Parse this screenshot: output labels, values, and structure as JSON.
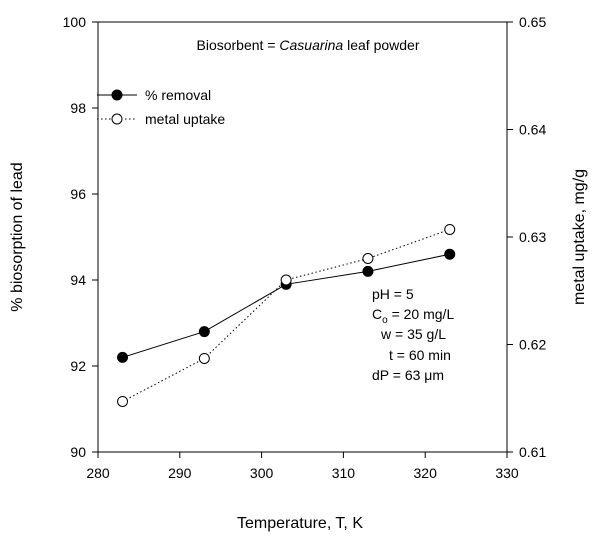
{
  "chart_data": {
    "type": "line",
    "title_prefix": "Biosorbent = ",
    "title_italic": "Casuarina",
    "title_suffix": " leaf powder",
    "xlabel": "Temperature, T, K",
    "ylabel_left": "% biosorption of lead",
    "ylabel_right": "metal uptake, mg/g",
    "xlim": [
      280,
      330
    ],
    "ylim_left": [
      90,
      100
    ],
    "ylim_right": [
      0.61,
      0.65
    ],
    "xticks": [
      "280",
      "290",
      "300",
      "310",
      "320",
      "330"
    ],
    "yticks_left": [
      "90",
      "92",
      "94",
      "96",
      "98",
      "100"
    ],
    "yticks_right": [
      "0.61",
      "0.62",
      "0.63",
      "0.64",
      "0.65"
    ],
    "series": [
      {
        "name": "% removal",
        "axis": "left",
        "marker": "filled-circle",
        "line": "solid",
        "x": [
          283,
          293,
          303,
          313,
          323
        ],
        "y": [
          92.2,
          92.8,
          93.9,
          94.2,
          94.6
        ]
      },
      {
        "name": "metal uptake",
        "axis": "right",
        "marker": "open-circle",
        "line": "dotted",
        "x": [
          283,
          293,
          303,
          313,
          323
        ],
        "y": [
          0.6147,
          0.6187,
          0.626,
          0.628,
          0.6307
        ]
      }
    ],
    "annotations": {
      "ph": "pH = 5",
      "co_prefix": "C",
      "co_sub": "o",
      "co_suffix": " = 20 mg/L",
      "w": "w = 35 g/L",
      "t": "t = 60 min",
      "dp": "dP = 63 μm"
    },
    "colors": {
      "line": "#000000",
      "background": "#ffffff"
    }
  }
}
